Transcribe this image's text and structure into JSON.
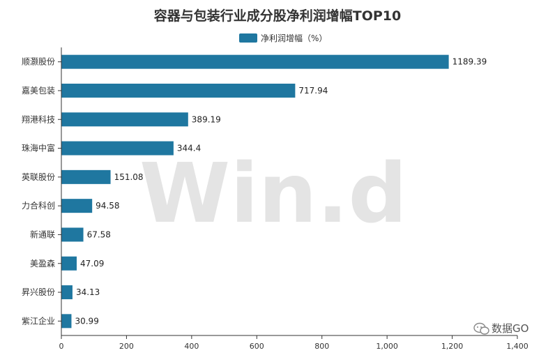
{
  "chart_data": {
    "type": "bar",
    "orientation": "horizontal",
    "title": "容器与包装行业成分股净利润增幅TOP10",
    "categories": [
      "顺灏股份",
      "嘉美包装",
      "翔港科技",
      "珠海中富",
      "英联股份",
      "力合科创",
      "新通联",
      "美盈森",
      "昇兴股份",
      "紫江企业"
    ],
    "series": [
      {
        "name": "净利润增幅（%）",
        "values": [
          1189.39,
          717.94,
          389.19,
          344.4,
          151.08,
          94.58,
          67.58,
          47.09,
          34.13,
          30.99
        ],
        "value_labels": [
          "1189.39",
          "717.94",
          "389.19",
          "344.4",
          "151.08",
          "94.58",
          "67.58",
          "47.09",
          "34.13",
          "30.99"
        ]
      }
    ],
    "xlim": [
      0,
      1400
    ],
    "x_ticks": [
      0,
      200,
      400,
      600,
      800,
      1000,
      1200,
      1400
    ],
    "x_tick_labels": [
      "0",
      "200",
      "400",
      "600",
      "800",
      "1,000",
      "1,200",
      "1,400"
    ],
    "grid": false,
    "legend_position": "top-center",
    "colors": {
      "bar": "#1f77a0",
      "axis": "#333333"
    }
  },
  "watermark": {
    "text": "Win.d"
  },
  "brand": {
    "text": "数据GO",
    "icon": "wechat-icon"
  }
}
